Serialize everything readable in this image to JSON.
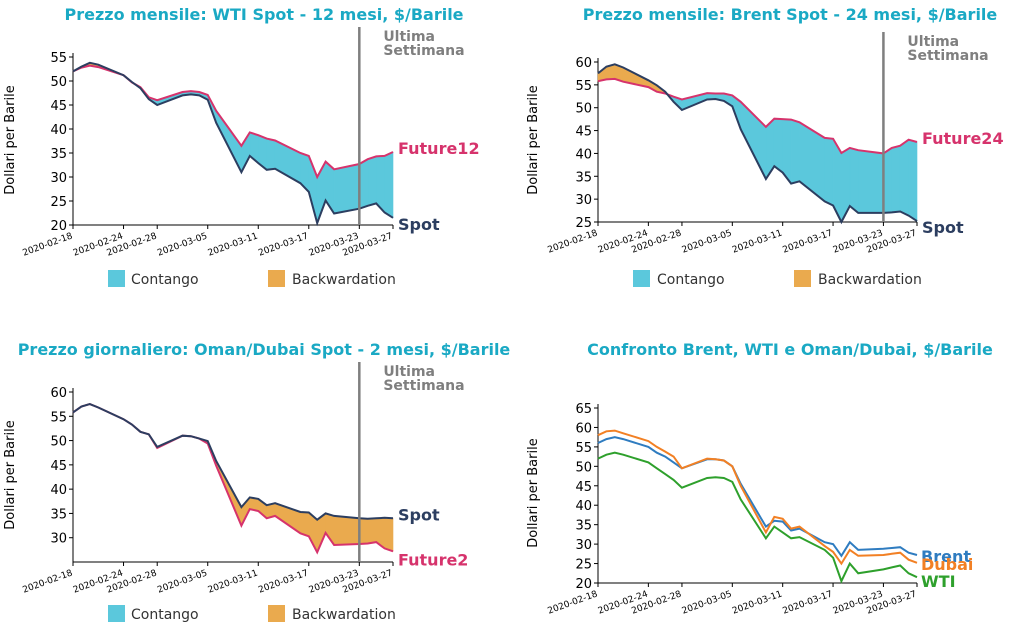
{
  "colors": {
    "spot": "#2c3e60",
    "future": "#d6336c",
    "contango": "#5bc8dc",
    "backwardation": "#eaaa4e",
    "title": "#1aa9c4",
    "marker": "#7f7f7f",
    "brent": "#2f7cc0",
    "dubai": "#f28024",
    "wti": "#2ea02c"
  },
  "x_ticks": [
    "2020-02-18",
    "2020-02-24",
    "2020-02-28",
    "2020-03-05",
    "2020-03-11",
    "2020-03-17",
    "2020-03-23",
    "2020-03-27"
  ],
  "ylabel": "Dollari per Barile",
  "marker_label_1": "Ultima",
  "marker_label_2": "Settimana",
  "legend": {
    "contango": "Contango",
    "backwardation": "Backwardation"
  },
  "chart_data": [
    {
      "type": "area",
      "title": "Prezzo mensile: WTI Spot - 12 mesi, $/Barile",
      "ylabel": "Dollari per Barile",
      "ylim": [
        20,
        55
      ],
      "y_ticks": [
        20,
        25,
        30,
        35,
        40,
        45,
        50,
        55
      ],
      "x": [
        "2020-02-18",
        "2020-02-19",
        "2020-02-20",
        "2020-02-21",
        "2020-02-24",
        "2020-02-25",
        "2020-02-26",
        "2020-02-27",
        "2020-02-28",
        "2020-03-02",
        "2020-03-03",
        "2020-03-04",
        "2020-03-05",
        "2020-03-06",
        "2020-03-09",
        "2020-03-10",
        "2020-03-11",
        "2020-03-12",
        "2020-03-13",
        "2020-03-16",
        "2020-03-17",
        "2020-03-18",
        "2020-03-19",
        "2020-03-20",
        "2020-03-23",
        "2020-03-24",
        "2020-03-25",
        "2020-03-26",
        "2020-03-27"
      ],
      "series": [
        {
          "name": "Spot",
          "values": [
            52.0,
            53.0,
            53.8,
            53.4,
            51.2,
            49.8,
            48.5,
            46.2,
            45.0,
            47.0,
            47.2,
            47.0,
            46.1,
            41.3,
            31.0,
            34.4,
            32.9,
            31.5,
            31.7,
            28.7,
            26.9,
            20.4,
            25.1,
            22.4,
            23.4,
            24.0,
            24.5,
            22.6,
            21.5
          ]
        },
        {
          "name": "Future12",
          "values": [
            52.0,
            52.8,
            53.2,
            52.9,
            51.2,
            49.7,
            48.7,
            46.6,
            46.0,
            47.7,
            47.9,
            47.7,
            47.1,
            43.8,
            36.5,
            39.3,
            38.7,
            38.0,
            37.6,
            35.0,
            34.4,
            30.0,
            33.2,
            31.6,
            32.7,
            33.7,
            34.3,
            34.4,
            35.2
          ]
        }
      ],
      "labels": [
        "Future12",
        "Spot"
      ],
      "marker_x": "2020-03-23"
    },
    {
      "type": "area",
      "title": "Prezzo mensile: Brent Spot - 24 mesi, $/Barile",
      "ylabel": "Dollari per Barile",
      "ylim": [
        25,
        60
      ],
      "y_ticks": [
        25,
        30,
        35,
        40,
        45,
        50,
        55,
        60
      ],
      "x": [
        "2020-02-18",
        "2020-02-19",
        "2020-02-20",
        "2020-02-21",
        "2020-02-24",
        "2020-02-25",
        "2020-02-26",
        "2020-02-27",
        "2020-02-28",
        "2020-03-02",
        "2020-03-03",
        "2020-03-04",
        "2020-03-05",
        "2020-03-06",
        "2020-03-09",
        "2020-03-10",
        "2020-03-11",
        "2020-03-12",
        "2020-03-13",
        "2020-03-16",
        "2020-03-17",
        "2020-03-18",
        "2020-03-19",
        "2020-03-20",
        "2020-03-23",
        "2020-03-24",
        "2020-03-25",
        "2020-03-26",
        "2020-03-27"
      ],
      "series": [
        {
          "name": "Spot",
          "values": [
            57.5,
            59.0,
            59.5,
            58.8,
            56.0,
            54.9,
            53.5,
            51.3,
            49.5,
            51.8,
            51.9,
            51.5,
            50.3,
            45.3,
            34.4,
            37.2,
            35.8,
            33.4,
            33.9,
            29.5,
            28.6,
            25.0,
            28.5,
            27.0,
            27.0,
            27.1,
            27.3,
            26.4,
            25.2
          ]
        },
        {
          "name": "Future24",
          "values": [
            55.8,
            56.2,
            56.3,
            55.7,
            54.5,
            53.5,
            53.1,
            52.4,
            51.8,
            53.2,
            53.1,
            53.1,
            52.7,
            51.3,
            45.8,
            47.6,
            47.5,
            47.4,
            46.8,
            43.4,
            43.2,
            40.1,
            41.2,
            40.7,
            40.0,
            41.2,
            41.7,
            43.0,
            42.5
          ]
        }
      ],
      "labels": [
        "Future24",
        "Spot"
      ],
      "marker_x": "2020-03-23"
    },
    {
      "type": "area",
      "title": "Prezzo giornaliero: Oman/Dubai Spot - 2 mesi, $/Barile",
      "ylabel": "Dollari per Barile",
      "ylim": [
        25,
        60
      ],
      "y_ticks": [
        30,
        35,
        40,
        45,
        50,
        55,
        60
      ],
      "x": [
        "2020-02-18",
        "2020-02-19",
        "2020-02-20",
        "2020-02-21",
        "2020-02-24",
        "2020-02-25",
        "2020-02-26",
        "2020-02-27",
        "2020-02-28",
        "2020-03-02",
        "2020-03-03",
        "2020-03-04",
        "2020-03-05",
        "2020-03-06",
        "2020-03-09",
        "2020-03-10",
        "2020-03-11",
        "2020-03-12",
        "2020-03-13",
        "2020-03-16",
        "2020-03-17",
        "2020-03-18",
        "2020-03-19",
        "2020-03-20",
        "2020-03-23",
        "2020-03-24",
        "2020-03-25",
        "2020-03-26",
        "2020-03-27"
      ],
      "series": [
        {
          "name": "Spot",
          "values": [
            55.8,
            57.0,
            57.5,
            56.8,
            54.4,
            53.3,
            51.8,
            51.3,
            48.7,
            51.0,
            50.9,
            50.4,
            49.9,
            45.8,
            36.3,
            38.3,
            38.0,
            36.7,
            37.1,
            35.3,
            35.2,
            33.7,
            35.0,
            34.5,
            34.0,
            33.9,
            34.0,
            34.1,
            34.0
          ]
        },
        {
          "name": "Future2",
          "values": [
            55.8,
            57.0,
            57.5,
            56.8,
            54.4,
            53.3,
            51.8,
            51.3,
            48.5,
            51.0,
            50.9,
            50.4,
            49.4,
            44.8,
            32.5,
            35.9,
            35.5,
            34.0,
            34.5,
            30.9,
            30.3,
            27.0,
            31.0,
            28.5,
            28.7,
            28.8,
            29.1,
            27.8,
            27.2
          ]
        }
      ],
      "labels": [
        "Spot",
        "Future2"
      ],
      "marker_x": "2020-03-23"
    },
    {
      "type": "line",
      "title": "Confronto Brent, WTI e Oman/Dubai, $/Barile",
      "ylabel": "Dollari per Barile",
      "ylim": [
        20,
        65
      ],
      "y_ticks": [
        20,
        25,
        30,
        35,
        40,
        45,
        50,
        55,
        60,
        65
      ],
      "x": [
        "2020-02-18",
        "2020-02-19",
        "2020-02-20",
        "2020-02-21",
        "2020-02-24",
        "2020-02-25",
        "2020-02-26",
        "2020-02-27",
        "2020-02-28",
        "2020-03-02",
        "2020-03-03",
        "2020-03-04",
        "2020-03-05",
        "2020-03-06",
        "2020-03-09",
        "2020-03-10",
        "2020-03-11",
        "2020-03-12",
        "2020-03-13",
        "2020-03-16",
        "2020-03-17",
        "2020-03-18",
        "2020-03-19",
        "2020-03-20",
        "2020-03-23",
        "2020-03-24",
        "2020-03-25",
        "2020-03-26",
        "2020-03-27"
      ],
      "series": [
        {
          "name": "Brent",
          "values": [
            56.0,
            57.0,
            57.5,
            57.0,
            55.0,
            53.5,
            52.5,
            51.0,
            49.5,
            51.8,
            51.8,
            51.5,
            50.0,
            45.5,
            34.5,
            36.0,
            35.8,
            33.5,
            34.0,
            30.5,
            30.0,
            27.0,
            30.5,
            28.5,
            28.8,
            29.0,
            29.2,
            27.8,
            27.2
          ]
        },
        {
          "name": "Dubai",
          "values": [
            58.0,
            59.0,
            59.2,
            58.5,
            56.5,
            55.0,
            53.8,
            52.5,
            49.5,
            52.0,
            51.8,
            51.5,
            50.0,
            45.0,
            33.0,
            37.0,
            36.5,
            34.0,
            34.5,
            29.5,
            28.0,
            25.0,
            28.5,
            27.0,
            27.2,
            27.5,
            27.8,
            26.0,
            25.2
          ]
        },
        {
          "name": "WTI",
          "values": [
            52.0,
            53.0,
            53.5,
            53.0,
            51.0,
            49.5,
            48.0,
            46.5,
            44.5,
            47.0,
            47.2,
            47.0,
            46.0,
            41.5,
            31.5,
            34.5,
            33.0,
            31.5,
            31.8,
            28.5,
            26.5,
            20.5,
            25.0,
            22.5,
            23.5,
            24.0,
            24.5,
            22.5,
            21.5
          ]
        }
      ],
      "labels": [
        "Brent",
        "Dubai",
        "WTI"
      ]
    }
  ]
}
